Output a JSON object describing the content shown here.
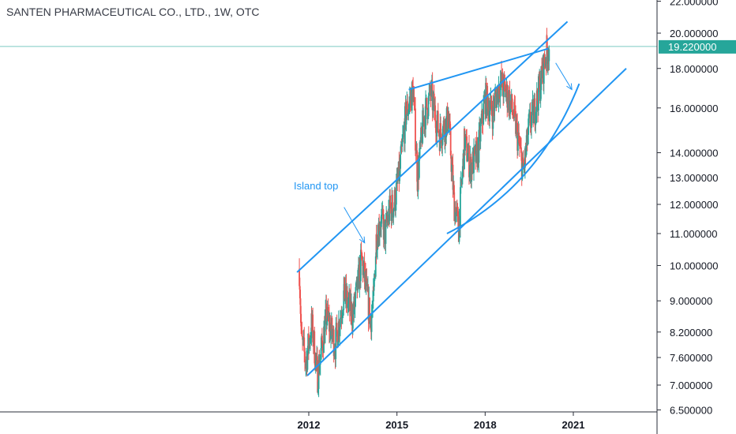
{
  "chart_title": "SANTEN PHARMACEUTICAL CO., LTD., 1W, OTC",
  "annotation": "Island top",
  "last_price_label": "19.220000",
  "chart_data": {
    "type": "candlestick",
    "title": "SANTEN PHARMACEUTICAL CO., LTD., 1W, OTC",
    "y_scale": "log",
    "y_ticks": [
      {
        "value": 22,
        "label": "22.000000"
      },
      {
        "value": 20,
        "label": "20.000000"
      },
      {
        "value": 18,
        "label": "18.000000"
      },
      {
        "value": 16,
        "label": "16.000000"
      },
      {
        "value": 14,
        "label": "14.000000"
      },
      {
        "value": 13,
        "label": "13.000000"
      },
      {
        "value": 12,
        "label": "12.000000"
      },
      {
        "value": 11,
        "label": "11.000000"
      },
      {
        "value": 10,
        "label": "10.000000"
      },
      {
        "value": 9,
        "label": "9.000000"
      },
      {
        "value": 8.2,
        "label": "8.200000"
      },
      {
        "value": 7.6,
        "label": "7.600000"
      },
      {
        "value": 7,
        "label": "7.000000"
      },
      {
        "value": 6.5,
        "label": "6.500000"
      }
    ],
    "x_ticks": [
      {
        "value": 2012,
        "label": "2012"
      },
      {
        "value": 2015,
        "label": "2015"
      },
      {
        "value": 2018,
        "label": "2018"
      },
      {
        "value": 2021,
        "label": "2021"
      }
    ],
    "last_price": 19.22,
    "up_color": "#26a69a",
    "down_color": "#ef5350",
    "drawing_color": "#2196f3",
    "price_path": [
      [
        2011.68,
        9.9
      ],
      [
        2011.75,
        8.0
      ],
      [
        2011.9,
        7.5
      ],
      [
        2012.1,
        8.4
      ],
      [
        2012.3,
        7.2
      ],
      [
        2012.6,
        8.6
      ],
      [
        2012.9,
        7.9
      ],
      [
        2013.2,
        9.2
      ],
      [
        2013.5,
        8.6
      ],
      [
        2013.8,
        10.2
      ],
      [
        2014.1,
        8.5
      ],
      [
        2014.2,
        9.0
      ],
      [
        2014.3,
        10.9
      ],
      [
        2014.45,
        11.5
      ],
      [
        2014.6,
        11.0
      ],
      [
        2014.75,
        11.8
      ],
      [
        2014.9,
        12.0
      ],
      [
        2015.1,
        13.3
      ],
      [
        2015.3,
        15.7
      ],
      [
        2015.55,
        16.9
      ],
      [
        2015.7,
        13.0
      ],
      [
        2015.9,
        15.5
      ],
      [
        2016.15,
        16.7
      ],
      [
        2016.45,
        14.8
      ],
      [
        2016.75,
        15.5
      ],
      [
        2016.95,
        12.0
      ],
      [
        2017.1,
        11.2
      ],
      [
        2017.3,
        14.5
      ],
      [
        2017.5,
        13.4
      ],
      [
        2017.75,
        14.0
      ],
      [
        2018.0,
        16.5
      ],
      [
        2018.25,
        15.8
      ],
      [
        2018.5,
        17.3
      ],
      [
        2018.8,
        16.5
      ],
      [
        2019.0,
        15.5
      ],
      [
        2019.15,
        14.3
      ],
      [
        2019.3,
        13.2
      ],
      [
        2019.5,
        15.2
      ],
      [
        2019.7,
        16.0
      ],
      [
        2019.85,
        17.0
      ],
      [
        2020.0,
        18.2
      ],
      [
        2020.1,
        19.0
      ],
      [
        2020.18,
        19.22
      ]
    ],
    "trend_lines": [
      {
        "from": [
          2011.6,
          9.8
        ],
        "to": [
          2020.8,
          20.7
        ]
      },
      {
        "from": [
          2011.95,
          7.2
        ],
        "to": [
          2022.8,
          18.0
        ]
      },
      {
        "from": [
          2015.4,
          16.9
        ],
        "to": [
          2020.15,
          19.1
        ]
      }
    ],
    "curve": {
      "from": [
        2016.7,
        11.0
      ],
      "via": [
        2019.8,
        12.6
      ],
      "to": [
        2021.2,
        17.2
      ]
    },
    "arrows": [
      {
        "from": [
          2020.4,
          18.3
        ],
        "to": [
          2020.95,
          16.9
        ]
      },
      {
        "from": [
          2013.2,
          11.9
        ],
        "to": [
          2013.9,
          10.7
        ]
      }
    ]
  }
}
